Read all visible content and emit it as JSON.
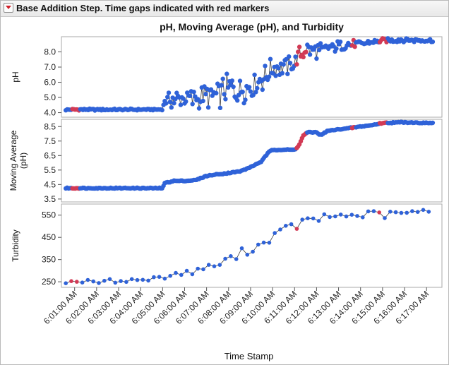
{
  "header": {
    "title": "Base Addition Step. Time gaps indicated with red markers"
  },
  "chart_data": {
    "type": "scatter",
    "title": "pH, Moving Average (pH), and Turbidity",
    "xlabel": "Time Stamp",
    "x_ticks": [
      "6:01:00 AM",
      "6:02:00 AM",
      "6:03:00 AM",
      "6:04:00 AM",
      "6:05:00 AM",
      "6:06:00 AM",
      "6:07:00 AM",
      "6:08:00 AM",
      "6:09:00 AM",
      "6:10:00 AM",
      "6:11:00 AM",
      "6:12:00 AM",
      "6:13:00 AM",
      "6:14:00 AM",
      "6:15:00 AM",
      "6:16:00 AM",
      "6:17:00 AM"
    ],
    "xlim_minutes": [
      0.4,
      17.7
    ],
    "colors": {
      "normal": "#2f62d8",
      "gap": "#d23a55",
      "line": "#3a3a3a"
    },
    "panels": [
      {
        "id": "ph",
        "ylabel": "pH",
        "ylim": [
          3.7,
          9.0
        ],
        "yticks": [
          4.0,
          5.0,
          6.0,
          7.0,
          8.0
        ],
        "ytick_labels": [
          "4.0",
          "5.0",
          "6.0",
          "7.0",
          "8.0"
        ],
        "connect": true,
        "keypoints": [
          [
            0.6,
            4.2
          ],
          [
            1.0,
            4.2
          ],
          [
            2.0,
            4.2
          ],
          [
            3.0,
            4.2
          ],
          [
            4.0,
            4.2
          ],
          [
            5.0,
            4.2
          ],
          [
            5.1,
            4.8
          ],
          [
            6.0,
            4.9
          ],
          [
            7.0,
            5.0
          ],
          [
            7.5,
            5.2
          ],
          [
            8.0,
            5.6
          ],
          [
            8.5,
            5.6
          ],
          [
            9.0,
            5.8
          ],
          [
            9.5,
            6.2
          ],
          [
            10.0,
            6.9
          ],
          [
            10.5,
            7.0
          ],
          [
            11.0,
            7.2
          ],
          [
            11.2,
            7.8
          ],
          [
            11.5,
            8.1
          ],
          [
            12.0,
            8.1
          ],
          [
            12.5,
            8.2
          ],
          [
            13.0,
            8.4
          ],
          [
            13.5,
            8.5
          ],
          [
            14.0,
            8.5
          ],
          [
            14.4,
            8.6
          ],
          [
            15.0,
            8.75
          ],
          [
            16.0,
            8.8
          ],
          [
            17.0,
            8.75
          ],
          [
            17.3,
            8.75
          ]
        ],
        "noise": [
          [
            0.6,
            0.05
          ],
          [
            5.0,
            0.05
          ],
          [
            5.1,
            0.45
          ],
          [
            6.0,
            0.6
          ],
          [
            7.0,
            0.7
          ],
          [
            8.0,
            0.9
          ],
          [
            9.0,
            0.9
          ],
          [
            10.0,
            0.6
          ],
          [
            11.0,
            0.55
          ],
          [
            11.3,
            0.55
          ],
          [
            12.5,
            0.35
          ],
          [
            13.5,
            0.25
          ],
          [
            14.5,
            0.15
          ],
          [
            17.3,
            0.12
          ]
        ],
        "gaps": [
          [
            0.85,
            1.25
          ],
          [
            11.1,
            11.55
          ],
          [
            13.6,
            13.8
          ],
          [
            14.85,
            15.2
          ]
        ],
        "step": 0.06
      },
      {
        "id": "moving-average",
        "ylabel": "Moving Average (pH)",
        "ylim": [
          3.3,
          9.0
        ],
        "yticks": [
          3.5,
          4.5,
          5.5,
          6.5,
          7.5,
          8.5
        ],
        "ytick_labels": [
          "3.5",
          "4.5",
          "5.5",
          "6.5",
          "7.5",
          "8.5"
        ],
        "connect": true,
        "keypoints": [
          [
            0.6,
            4.25
          ],
          [
            1.0,
            4.25
          ],
          [
            2.0,
            4.25
          ],
          [
            3.0,
            4.25
          ],
          [
            4.0,
            4.25
          ],
          [
            5.0,
            4.25
          ],
          [
            5.1,
            4.6
          ],
          [
            5.5,
            4.75
          ],
          [
            6.0,
            4.75
          ],
          [
            6.5,
            4.8
          ],
          [
            7.0,
            5.1
          ],
          [
            7.5,
            5.2
          ],
          [
            8.0,
            5.3
          ],
          [
            8.5,
            5.4
          ],
          [
            9.0,
            5.7
          ],
          [
            9.5,
            6.1
          ],
          [
            9.8,
            6.7
          ],
          [
            10.0,
            6.9
          ],
          [
            10.5,
            6.9
          ],
          [
            11.0,
            6.9
          ],
          [
            11.2,
            7.2
          ],
          [
            11.4,
            7.9
          ],
          [
            11.6,
            8.1
          ],
          [
            12.0,
            8.1
          ],
          [
            12.2,
            7.9
          ],
          [
            12.5,
            8.2
          ],
          [
            13.0,
            8.3
          ],
          [
            13.5,
            8.4
          ],
          [
            14.0,
            8.5
          ],
          [
            14.5,
            8.6
          ],
          [
            15.0,
            8.75
          ],
          [
            16.0,
            8.8
          ],
          [
            17.0,
            8.75
          ],
          [
            17.3,
            8.75
          ]
        ],
        "noise": [
          [
            0.6,
            0.03
          ],
          [
            17.3,
            0.03
          ]
        ],
        "gaps": [
          [
            0.85,
            1.25
          ],
          [
            11.1,
            11.55
          ],
          [
            13.6,
            13.8
          ],
          [
            14.85,
            15.2
          ]
        ],
        "step": 0.06
      },
      {
        "id": "turbidity",
        "ylabel": "Turbidity",
        "ylim": [
          225,
          600
        ],
        "yticks": [
          250,
          350,
          450,
          550
        ],
        "ytick_labels": [
          "250",
          "350",
          "450",
          "550"
        ],
        "connect": true,
        "keypoints": [
          [
            0.6,
            250
          ],
          [
            1.0,
            252
          ],
          [
            2.0,
            250
          ],
          [
            3.0,
            255
          ],
          [
            4.0,
            258
          ],
          [
            5.0,
            270
          ],
          [
            6.0,
            290
          ],
          [
            7.0,
            315
          ],
          [
            7.5,
            325
          ],
          [
            8.0,
            350
          ],
          [
            8.5,
            375
          ],
          [
            9.0,
            395
          ],
          [
            9.5,
            420
          ],
          [
            10.0,
            455
          ],
          [
            10.5,
            480
          ],
          [
            11.0,
            510
          ],
          [
            11.5,
            515
          ],
          [
            12.0,
            530
          ],
          [
            12.5,
            540
          ],
          [
            13.0,
            548
          ],
          [
            14.0,
            550
          ],
          [
            15.0,
            555
          ],
          [
            16.0,
            560
          ],
          [
            17.0,
            565
          ],
          [
            17.3,
            555
          ]
        ],
        "noise": [
          [
            0.6,
            8
          ],
          [
            5.0,
            10
          ],
          [
            8.0,
            18
          ],
          [
            11.0,
            22
          ],
          [
            17.3,
            15
          ]
        ],
        "gaps": [
          [
            0.85,
            1.25
          ],
          [
            11.1,
            11.2
          ],
          [
            12.95,
            13.05
          ],
          [
            14.85,
            14.95
          ]
        ],
        "step": 0.25
      }
    ]
  }
}
